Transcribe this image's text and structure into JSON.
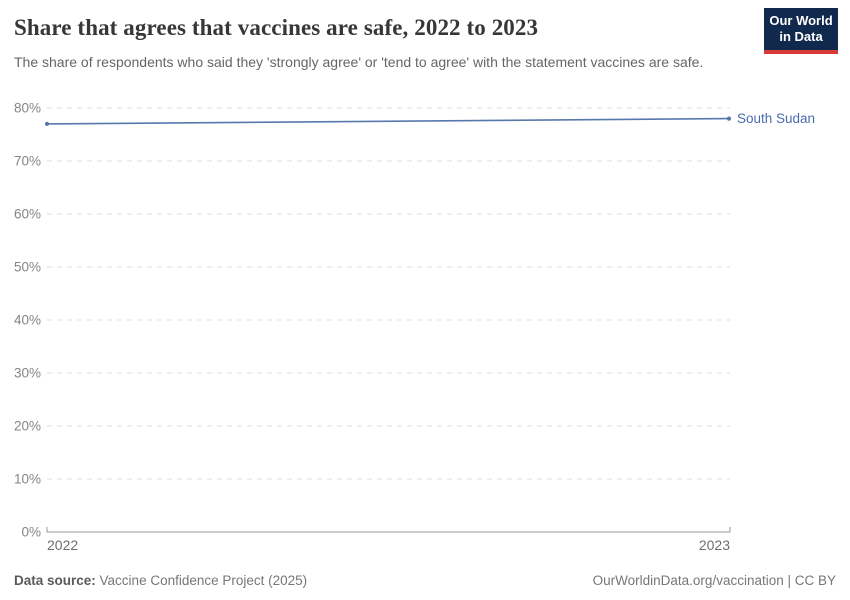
{
  "header": {
    "title": "Share that agrees that vaccines are safe, 2022 to 2023",
    "subtitle": "The share of respondents who said they 'strongly agree' or 'tend to agree' with the statement vaccines are safe.",
    "logo": {
      "line1": "Our World",
      "line2": "in Data",
      "bg_color": "#12294e",
      "accent_color": "#d73a3a"
    }
  },
  "chart_data": {
    "type": "line",
    "title": "Share that agrees that vaccines are safe, 2022 to 2023",
    "x": [
      2022,
      2023
    ],
    "series": [
      {
        "name": "South Sudan",
        "values": [
          77,
          78
        ],
        "color": "#5878ab",
        "label_color": "#4a6cad"
      }
    ],
    "xlabel": "",
    "ylabel": "",
    "ylim": [
      0,
      80
    ],
    "ytick_step": 10,
    "ytick_suffix": "%",
    "ytick_labels": [
      "0%",
      "10%",
      "20%",
      "30%",
      "40%",
      "50%",
      "60%",
      "70%",
      "80%"
    ],
    "xtick_labels": [
      "2022",
      "2023"
    ],
    "grid": "horizontal-dashed",
    "grid_color": "#dcdcdc",
    "axis_color": "#9a9a9a",
    "tick_label_color": "#858585",
    "xtick_label_color": "#6f6f6f",
    "legend_position": "end-of-line-label"
  },
  "footer": {
    "data_source_label": "Data source:",
    "data_source_value": "Vaccine Confidence Project (2025)",
    "attribution": "OurWorldinData.org/vaccination | CC BY"
  }
}
